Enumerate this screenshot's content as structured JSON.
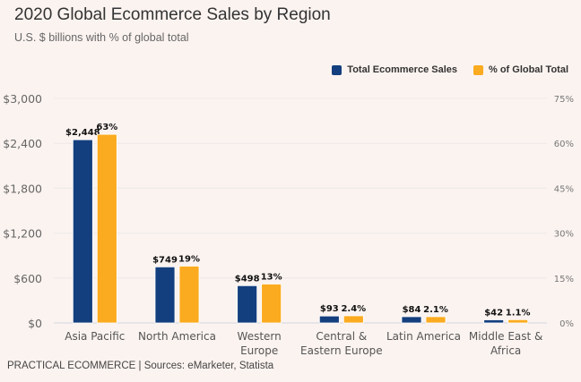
{
  "header": {
    "title": "2020 Global Ecommerce Sales by Region",
    "subtitle": "U.S. $ billions with % of global total"
  },
  "footer": "PRACTICAL ECOMMERCE | Sources: eMarketer, Statista",
  "chart_data": {
    "type": "bar",
    "title": "2020 Global Ecommerce Sales by Region",
    "subtitle": "U.S. $ billions with % of global total",
    "categories": [
      [
        "Asia Pacific"
      ],
      [
        "North America"
      ],
      [
        "Western",
        "Europe"
      ],
      [
        "Central &",
        "Eastern Europe"
      ],
      [
        "Latin America"
      ],
      [
        "Middle East &",
        "Africa"
      ]
    ],
    "series": [
      {
        "name": "Total Ecommerce Sales",
        "axis": "left",
        "color": "#143f7e",
        "values": [
          2448,
          749,
          498,
          93,
          84,
          42
        ],
        "labels": [
          "$2,448",
          "$749",
          "$498",
          "$93",
          "$84",
          "$42"
        ]
      },
      {
        "name": "% of Global Total",
        "axis": "right",
        "color": "#fbab1f",
        "values": [
          63,
          19,
          13,
          2.4,
          2.1,
          1.1
        ],
        "labels": [
          "63%",
          "19%",
          "13%",
          "2.4%",
          "2.1%",
          "1.1%"
        ]
      }
    ],
    "left_axis": {
      "range": [
        0,
        3000
      ],
      "ticks": [
        0,
        600,
        1200,
        1800,
        2400,
        3000
      ],
      "tick_labels": [
        "$0",
        "$600",
        "$1,200",
        "$1,800",
        "$2,400",
        "$3,000"
      ]
    },
    "right_axis": {
      "range": [
        0,
        75
      ],
      "ticks": [
        0,
        15,
        30,
        45,
        60,
        75
      ],
      "tick_labels": [
        "0%",
        "15%",
        "30%",
        "45%",
        "60%",
        "75%"
      ]
    },
    "grid": true,
    "legend": "top-right"
  }
}
